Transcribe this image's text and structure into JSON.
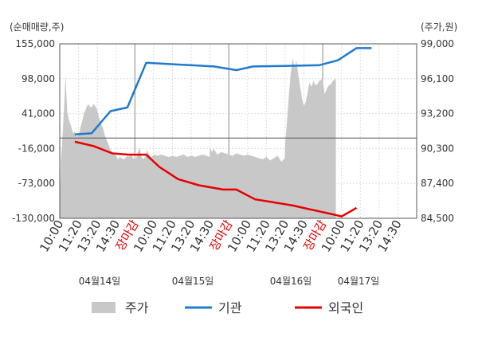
{
  "chart_data": {
    "type": "line",
    "left_axis_unit": "(순매매량,주)",
    "right_axis_unit": "(주가,원)",
    "left_ylim": [
      -130000,
      155000
    ],
    "right_ylim": [
      84500,
      99000
    ],
    "left_ticks": [
      "155,000",
      "98,000",
      "41,000",
      "-16,000",
      "-73,000",
      "-130,000"
    ],
    "right_ticks": [
      "99,000",
      "96,100",
      "93,200",
      "90,300",
      "87,400",
      "84,500"
    ],
    "x_ticks": [
      {
        "label": "10:00",
        "close": false
      },
      {
        "label": "11:20",
        "close": false
      },
      {
        "label": "13:20",
        "close": false
      },
      {
        "label": "14:30",
        "close": false
      },
      {
        "label": "장마감",
        "close": true
      },
      {
        "label": "10:00",
        "close": false
      },
      {
        "label": "11:20",
        "close": false
      },
      {
        "label": "13:20",
        "close": false
      },
      {
        "label": "14:30",
        "close": false
      },
      {
        "label": "장마감",
        "close": true
      },
      {
        "label": "10:00",
        "close": false
      },
      {
        "label": "11:20",
        "close": false
      },
      {
        "label": "13:20",
        "close": false
      },
      {
        "label": "14:30",
        "close": false
      },
      {
        "label": "장마감",
        "close": true
      },
      {
        "label": "10:00",
        "close": false
      },
      {
        "label": "11:20",
        "close": false
      },
      {
        "label": "13:20",
        "close": false
      },
      {
        "label": "14:30",
        "close": false
      }
    ],
    "dates": [
      "04월14일",
      "04월15일",
      "04월16일",
      "04월17일"
    ],
    "series": [
      {
        "name": "주가",
        "color": "#c8c8c8",
        "kind": "area",
        "axis": "right",
        "points": [
          [
            0.0,
            85.6
          ],
          [
            0.06,
            89.4
          ],
          [
            0.12,
            90.6
          ],
          [
            0.18,
            92.2
          ],
          [
            0.24,
            94.1
          ],
          [
            0.28,
            95.4
          ],
          [
            0.31,
            96.5
          ],
          [
            0.34,
            95.2
          ],
          [
            0.4,
            93.4
          ],
          [
            0.5,
            92.6
          ],
          [
            0.6,
            92.2
          ],
          [
            0.7,
            91.6
          ],
          [
            0.8,
            91.7
          ],
          [
            0.9,
            91.3
          ],
          [
            1.0,
            91.4
          ],
          [
            1.1,
            92.0
          ],
          [
            1.2,
            92.6
          ],
          [
            1.3,
            93.3
          ],
          [
            1.4,
            93.6
          ],
          [
            1.5,
            94.0
          ],
          [
            1.6,
            93.8
          ],
          [
            1.7,
            93.7
          ],
          [
            1.8,
            94.0
          ],
          [
            1.9,
            93.8
          ],
          [
            2.0,
            93.5
          ],
          [
            2.1,
            92.8
          ],
          [
            2.2,
            92.4
          ],
          [
            2.3,
            92.0
          ],
          [
            2.4,
            91.4
          ],
          [
            2.5,
            91.0
          ],
          [
            2.6,
            90.6
          ],
          [
            2.7,
            90.2
          ],
          [
            2.8,
            90.0
          ],
          [
            2.9,
            89.9
          ],
          [
            3.0,
            89.7
          ],
          [
            3.1,
            89.4
          ],
          [
            3.2,
            89.6
          ],
          [
            3.3,
            89.5
          ],
          [
            3.4,
            89.4
          ],
          [
            3.5,
            89.5
          ],
          [
            3.6,
            89.7
          ],
          [
            3.7,
            89.6
          ],
          [
            3.8,
            89.8
          ],
          [
            3.9,
            89.5
          ],
          [
            3.98,
            89.4
          ],
          [
            4.0,
            90.0
          ],
          [
            4.05,
            89.4
          ],
          [
            4.15,
            89.9
          ],
          [
            4.25,
            90.4
          ],
          [
            4.35,
            89.6
          ],
          [
            4.45,
            89.4
          ],
          [
            4.55,
            89.6
          ],
          [
            4.65,
            90.2
          ],
          [
            4.75,
            89.8
          ],
          [
            4.85,
            89.6
          ],
          [
            4.95,
            89.7
          ],
          [
            5.05,
            89.8
          ],
          [
            5.2,
            89.7
          ],
          [
            5.4,
            89.8
          ],
          [
            5.6,
            89.7
          ],
          [
            5.8,
            89.6
          ],
          [
            6.0,
            89.7
          ],
          [
            6.2,
            89.6
          ],
          [
            6.4,
            89.7
          ],
          [
            6.6,
            89.8
          ],
          [
            6.8,
            89.6
          ],
          [
            7.0,
            89.7
          ],
          [
            7.2,
            89.6
          ],
          [
            7.4,
            89.7
          ],
          [
            7.6,
            89.8
          ],
          [
            7.8,
            89.7
          ],
          [
            7.98,
            89.6
          ],
          [
            8.0,
            90.4
          ],
          [
            8.1,
            90.0
          ],
          [
            8.2,
            90.3
          ],
          [
            8.3,
            90.0
          ],
          [
            8.4,
            89.8
          ],
          [
            8.5,
            89.9
          ],
          [
            8.6,
            90.0
          ],
          [
            8.8,
            89.9
          ],
          [
            9.0,
            89.8
          ],
          [
            9.2,
            89.7
          ],
          [
            9.4,
            89.9
          ],
          [
            9.6,
            89.8
          ],
          [
            9.8,
            89.7
          ],
          [
            10.0,
            89.8
          ],
          [
            10.2,
            89.7
          ],
          [
            10.4,
            89.6
          ],
          [
            10.6,
            89.5
          ],
          [
            10.8,
            89.4
          ],
          [
            11.0,
            89.6
          ],
          [
            11.2,
            89.3
          ],
          [
            11.4,
            89.5
          ],
          [
            11.6,
            89.7
          ],
          [
            11.8,
            89.2
          ],
          [
            11.98,
            89.5
          ],
          [
            12.0,
            90.6
          ],
          [
            12.1,
            92.6
          ],
          [
            12.2,
            94.8
          ],
          [
            12.3,
            96.6
          ],
          [
            12.4,
            97.8
          ],
          [
            12.5,
            97.0
          ],
          [
            12.6,
            97.6
          ],
          [
            12.7,
            96.4
          ],
          [
            12.8,
            95.4
          ],
          [
            12.9,
            94.4
          ],
          [
            13.0,
            93.8
          ],
          [
            13.1,
            94.2
          ],
          [
            13.2,
            95.0
          ],
          [
            13.3,
            95.8
          ],
          [
            13.4,
            95.4
          ],
          [
            13.5,
            95.9
          ],
          [
            13.6,
            95.6
          ],
          [
            13.7,
            95.6
          ],
          [
            13.8,
            95.9
          ],
          [
            13.9,
            96.0
          ],
          [
            14.0,
            96.1
          ],
          [
            14.1,
            94.8
          ],
          [
            14.2,
            95.2
          ],
          [
            14.3,
            95.5
          ],
          [
            14.4,
            95.6
          ],
          [
            14.5,
            95.8
          ],
          [
            14.6,
            96.0
          ],
          [
            14.7,
            96.1
          ]
        ]
      },
      {
        "name": "기관",
        "color": "#1f7ad0",
        "kind": "line",
        "axis": "left",
        "points": [
          [
            0.8,
            7000
          ],
          [
            1.7,
            9000
          ],
          [
            2.7,
            45000
          ],
          [
            3.6,
            51000
          ],
          [
            4.6,
            124000
          ],
          [
            6.4,
            121000
          ],
          [
            8.2,
            118000
          ],
          [
            9.4,
            112000
          ],
          [
            10.3,
            118000
          ],
          [
            12.0,
            119000
          ],
          [
            13.8,
            120000
          ],
          [
            14.8,
            128000
          ],
          [
            15.8,
            148000
          ],
          [
            16.6,
            148000
          ]
        ]
      },
      {
        "name": "외국인",
        "color": "#e60000",
        "kind": "line",
        "axis": "left",
        "points": [
          [
            0.8,
            -5000
          ],
          [
            1.8,
            -12000
          ],
          [
            2.8,
            -24000
          ],
          [
            3.7,
            -26000
          ],
          [
            4.6,
            -26000
          ],
          [
            5.3,
            -46000
          ],
          [
            6.3,
            -66000
          ],
          [
            7.4,
            -76000
          ],
          [
            8.7,
            -83000
          ],
          [
            9.4,
            -83000
          ],
          [
            10.4,
            -99000
          ],
          [
            11.4,
            -104000
          ],
          [
            12.4,
            -109000
          ],
          [
            13.4,
            -116000
          ],
          [
            14.6,
            -124000
          ],
          [
            15.0,
            -127000
          ],
          [
            15.4,
            -120000
          ],
          [
            15.8,
            -113000
          ]
        ]
      }
    ],
    "legend": {
      "position": "bottom",
      "items": [
        {
          "label": "주가",
          "color": "#c8c8c8",
          "shape": "area"
        },
        {
          "label": "기관",
          "color": "#1f7ad0",
          "shape": "line"
        },
        {
          "label": "외국인",
          "color": "#e60000",
          "shape": "line"
        }
      ]
    }
  }
}
